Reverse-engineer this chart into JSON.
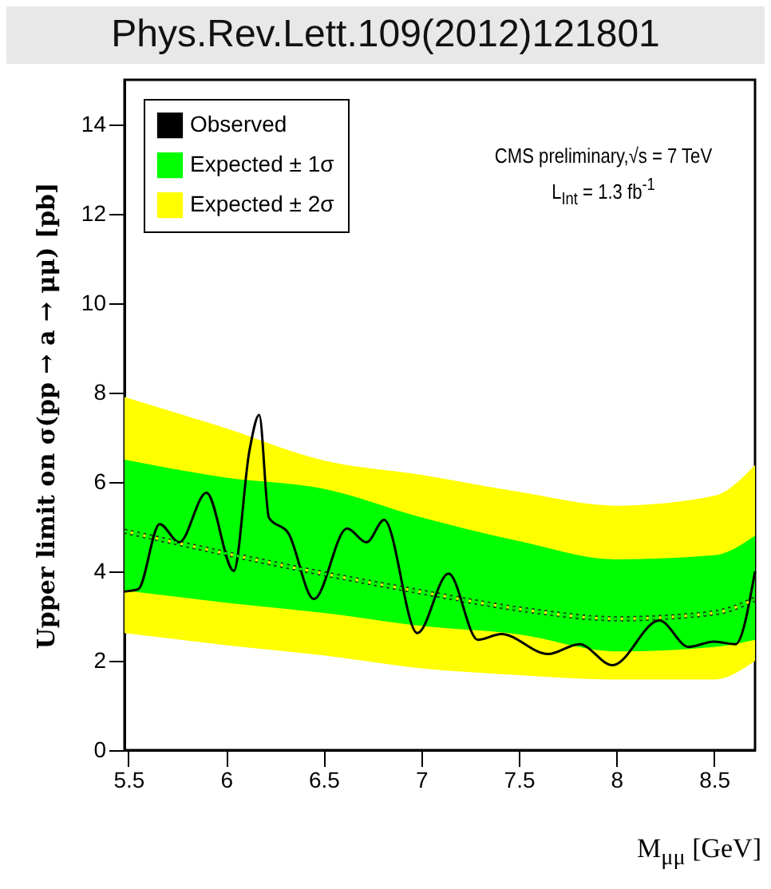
{
  "chart_data": {
    "type": "line",
    "xlabel": "M$_{μμ}$ [GeV]",
    "ylabel": "Upper limit on σ(pp → a → μμ) [pb]",
    "xlim": [
      5.48,
      8.71
    ],
    "ylim": [
      0,
      15
    ],
    "xticks": [
      5.5,
      6,
      6.5,
      7,
      7.5,
      8,
      8.5
    ],
    "yticks": [
      0,
      2,
      4,
      6,
      8,
      10,
      12,
      14
    ],
    "legend": "top left",
    "grid": false,
    "annotations": [
      "CMS preliminary,√s = 7 TeV",
      "L$_{Int}$ = 1.3 fb$^{-1}$",
      "Phys.Rev.Lett.109(2012)121801"
    ],
    "series": [
      {
        "name": "Observed",
        "color": "#000000",
        "line_style": "solid",
        "x": [
          5.48,
          5.55,
          5.66,
          5.76,
          5.9,
          6.04,
          6.12,
          6.17,
          6.22,
          6.32,
          6.45,
          6.62,
          6.72,
          6.81,
          6.98,
          7.14,
          7.29,
          7.41,
          7.65,
          7.81,
          7.98,
          8.22,
          8.37,
          8.5,
          8.61,
          8.71
        ],
        "values": [
          3.55,
          3.6,
          5.06,
          4.65,
          5.76,
          4.01,
          6.7,
          7.5,
          5.2,
          4.85,
          3.38,
          4.96,
          4.65,
          5.15,
          2.62,
          3.95,
          2.47,
          2.6,
          2.15,
          2.37,
          1.9,
          2.9,
          2.31,
          2.43,
          2.37,
          4.0
        ]
      },
      {
        "name": "Expected ± 1σ",
        "color": "#00ff00",
        "line_style": "dotted",
        "x": [
          5.48,
          6,
          6.5,
          7,
          7.5,
          8,
          8.5,
          8.71
        ],
        "values": [
          4.9,
          4.4,
          3.95,
          3.54,
          3.16,
          2.94,
          3.07,
          3.38
        ],
        "lower": [
          3.57,
          3.3,
          3.07,
          2.78,
          2.59,
          2.21,
          2.31,
          2.47
        ],
        "upper": [
          6.5,
          6.1,
          5.85,
          5.21,
          4.68,
          4.27,
          4.36,
          4.8
        ]
      },
      {
        "name": "Expected ± 2σ",
        "color": "#ffff00",
        "line_style": "dotted",
        "x": [
          5.48,
          6,
          6.5,
          7,
          7.5,
          8,
          8.5,
          8.71
        ],
        "values": [
          4.9,
          4.4,
          3.95,
          3.54,
          3.16,
          2.94,
          3.07,
          3.38
        ],
        "lower": [
          2.62,
          2.35,
          2.12,
          1.83,
          1.68,
          1.58,
          1.58,
          2.0
        ],
        "upper": [
          7.9,
          7.2,
          6.48,
          6.16,
          5.78,
          5.47,
          5.69,
          6.38
        ]
      }
    ]
  }
}
